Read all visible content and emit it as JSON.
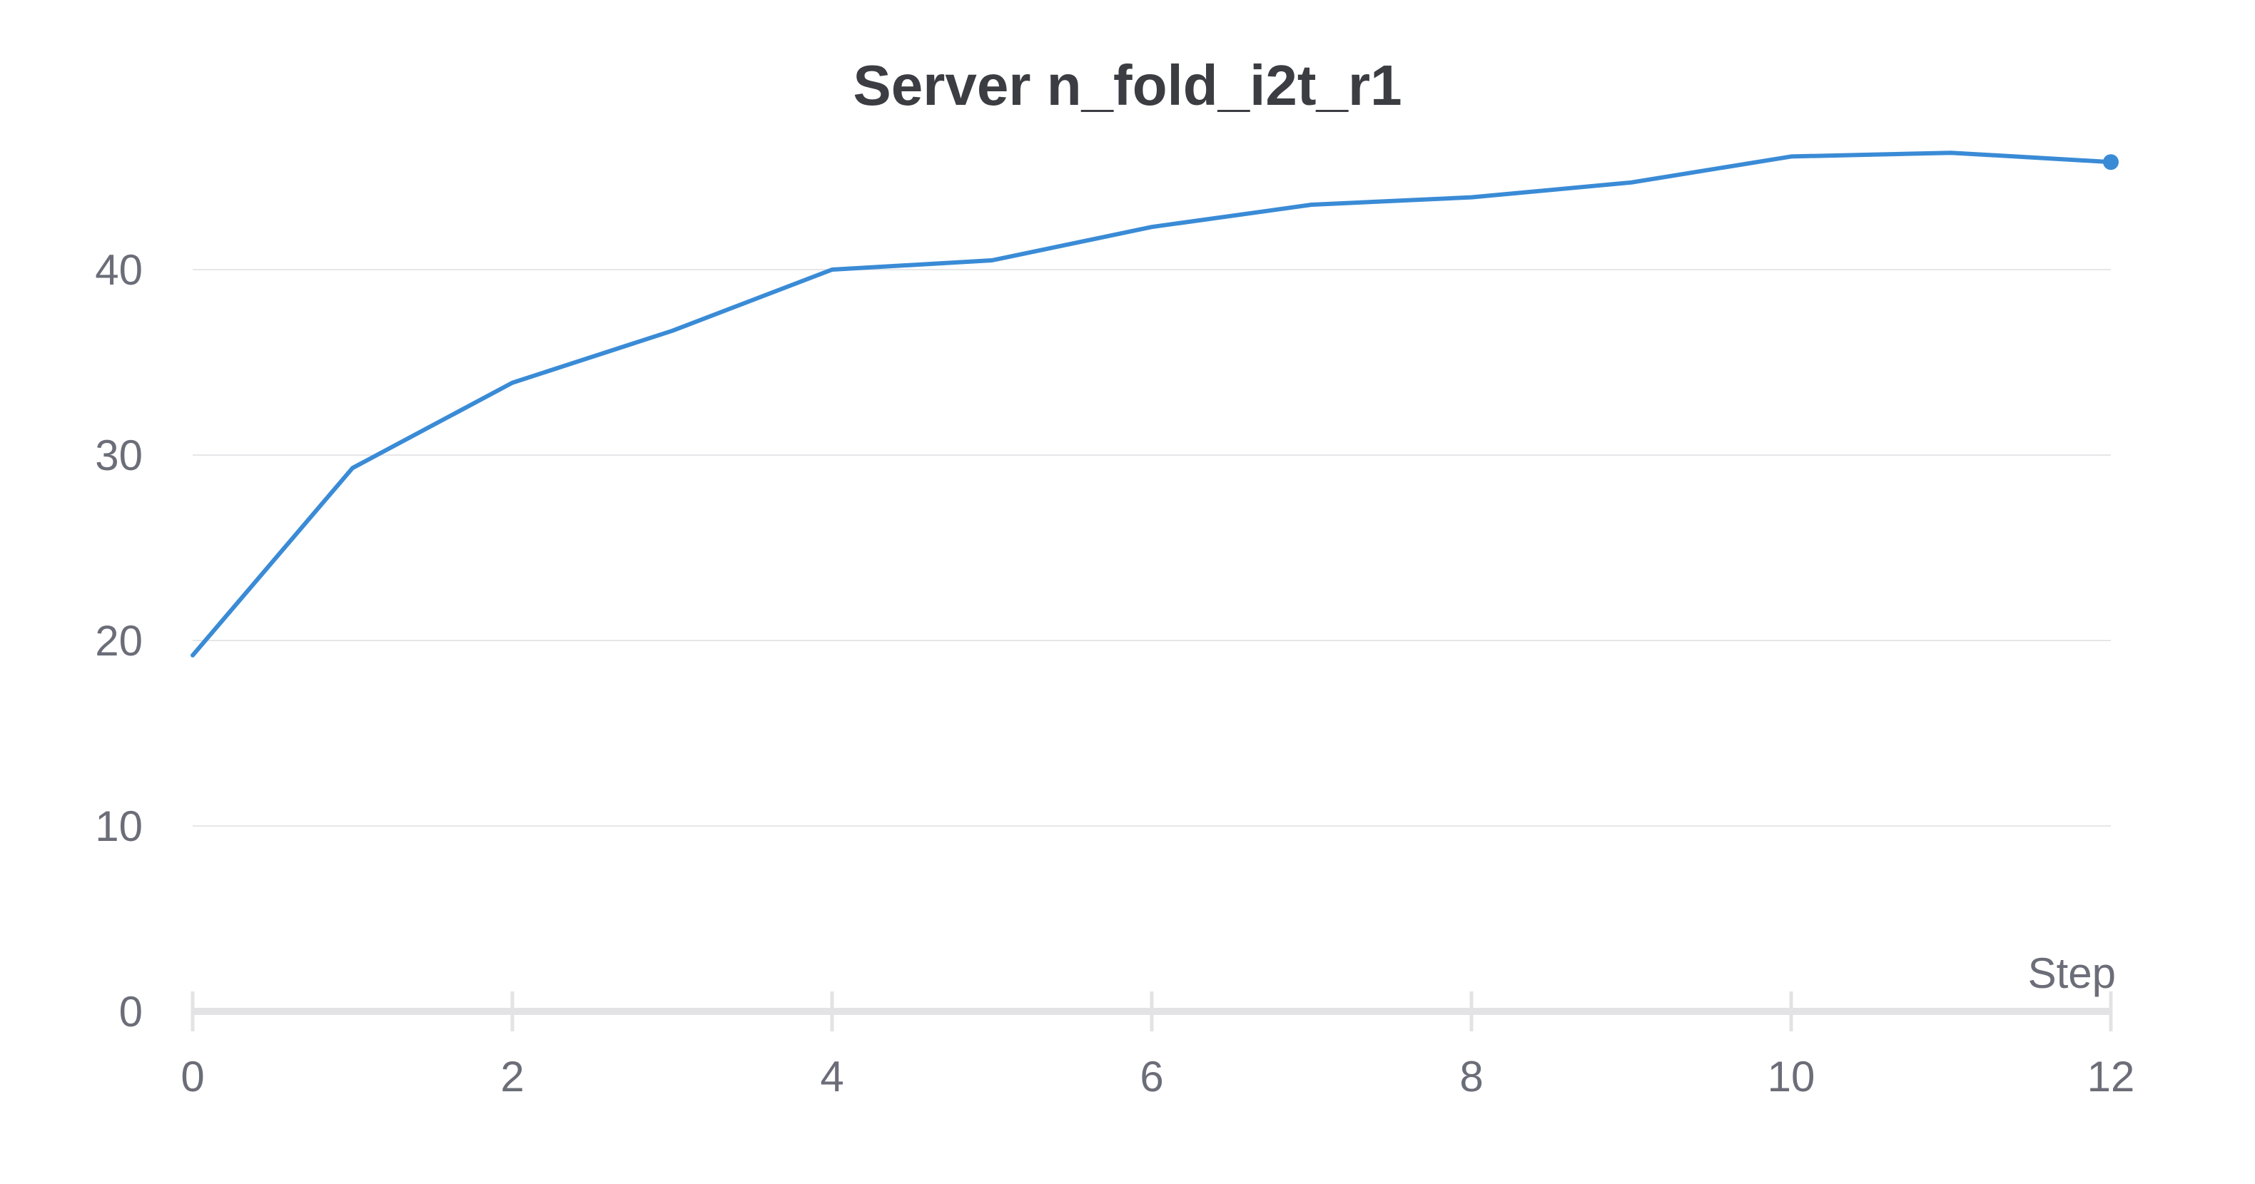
{
  "chart_data": {
    "type": "line",
    "title": "Server n_fold_i2t_r1",
    "xlabel": "Step",
    "ylabel": "",
    "xlim": [
      0,
      12
    ],
    "ylim": [
      0,
      46
    ],
    "xticks": [
      0,
      2,
      4,
      6,
      8,
      10,
      12
    ],
    "yticks": [
      0,
      10,
      20,
      30,
      40
    ],
    "grid": true,
    "legend": "none",
    "series": [
      {
        "color": "#3a8bd6",
        "x": [
          0,
          1,
          2,
          3,
          4,
          5,
          6,
          7,
          8,
          9,
          10,
          11,
          12
        ],
        "y": [
          19.2,
          29.3,
          33.9,
          36.7,
          40.0,
          40.5,
          42.3,
          43.5,
          43.9,
          44.7,
          46.1,
          46.3,
          45.8
        ]
      }
    ]
  }
}
